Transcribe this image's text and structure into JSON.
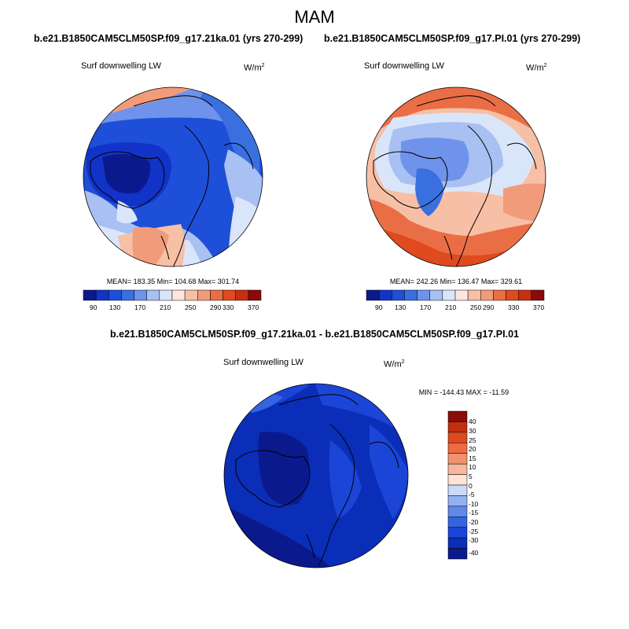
{
  "title": "MAM",
  "colors": {
    "abs": [
      "#0a1a8c",
      "#1233c7",
      "#1e4fd8",
      "#3a6fe0",
      "#6f93ea",
      "#a8c0f2",
      "#d9e6fa",
      "#fde6de",
      "#f7bfa6",
      "#f29b7a",
      "#ea6e45",
      "#df4a1f",
      "#c72f10",
      "#8b0a0a"
    ],
    "diff": [
      "#0a1a8c",
      "#0b2eb8",
      "#1b45d6",
      "#3564e2",
      "#5f88ea",
      "#93b1f1",
      "#c9dbf8",
      "#fde3d8",
      "#f7b79c",
      "#f29170",
      "#ed6a44",
      "#dd4a1f",
      "#c0300f",
      "#8b0a0a"
    ]
  },
  "panels": [
    {
      "title": "b.e21.B1850CAM5CLM50SP.f09_g17.21ka.01 (yrs 270-299)",
      "var_label": "Surf downwelling LW",
      "units": "W/m",
      "units_sup": "2",
      "stats": "MEAN= 183.35  Min= 104.68  Max= 301.74",
      "colorbar_labels": [
        "90",
        "130",
        "170",
        "210",
        "250",
        "290",
        "330",
        "370"
      ]
    },
    {
      "title": "b.e21.B1850CAM5CLM50SP.f09_g17.PI.01 (yrs 270-299)",
      "var_label": "Surf downwelling LW",
      "units": "W/m",
      "units_sup": "2",
      "stats": "MEAN= 242.26  Min= 136.47  Max= 329.61",
      "colorbar_labels": [
        "90",
        "130",
        "170",
        "210",
        "250",
        "290",
        "330",
        "370"
      ]
    }
  ],
  "diff_panel": {
    "title": "b.e21.B1850CAM5CLM50SP.f09_g17.21ka.01 - b.e21.B1850CAM5CLM50SP.f09_g17.PI.01",
    "var_label": "Surf downwelling LW",
    "units": "W/m",
    "units_sup": "2",
    "stats": "MIN = -144.43 MAX = -11.59",
    "colorbar_labels": [
      "40",
      "30",
      "25",
      "20",
      "15",
      "10",
      "5",
      "0",
      "-5",
      "-10",
      "-15",
      "-20",
      "-25",
      "-30",
      "-40"
    ]
  },
  "chart_data": [
    {
      "type": "heatmap",
      "title": "b.e21.B1850CAM5CLM50SP.f09_g17.21ka.01 (yrs 270-299)",
      "subtitle": "Surf downwelling LW",
      "units": "W/m2",
      "projection": "polar stereographic, North Pole",
      "stats": {
        "mean": 183.35,
        "min": 104.68,
        "max": 301.74
      },
      "contour_levels": [
        90,
        110,
        130,
        150,
        170,
        190,
        210,
        230,
        250,
        270,
        290,
        310,
        330,
        350,
        370
      ]
    },
    {
      "type": "heatmap",
      "title": "b.e21.B1850CAM5CLM50SP.f09_g17.PI.01 (yrs 270-299)",
      "subtitle": "Surf downwelling LW",
      "units": "W/m2",
      "projection": "polar stereographic, North Pole",
      "stats": {
        "mean": 242.26,
        "min": 136.47,
        "max": 329.61
      },
      "contour_levels": [
        90,
        110,
        130,
        150,
        170,
        190,
        210,
        230,
        250,
        270,
        290,
        310,
        330,
        350,
        370
      ]
    },
    {
      "type": "heatmap",
      "title": "b.e21.B1850CAM5CLM50SP.f09_g17.21ka.01 - b.e21.B1850CAM5CLM50SP.f09_g17.PI.01",
      "subtitle": "Surf downwelling LW",
      "units": "W/m2",
      "projection": "polar stereographic, North Pole",
      "stats": {
        "min": -144.43,
        "max": -11.59
      },
      "contour_levels": [
        -40,
        -30,
        -25,
        -20,
        -15,
        -10,
        -5,
        0,
        5,
        10,
        15,
        20,
        25,
        30,
        40
      ]
    }
  ]
}
